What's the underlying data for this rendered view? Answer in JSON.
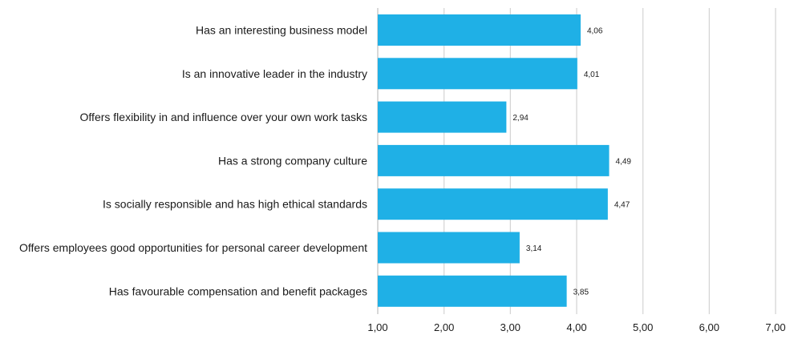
{
  "chart_data": {
    "type": "bar",
    "orientation": "horizontal",
    "title": "",
    "xlabel": "",
    "ylabel": "",
    "categories": [
      "Has an interesting business model",
      "Is an innovative leader in the industry",
      "Offers flexibility in and influence over your own work tasks",
      "Has a strong company culture",
      "Is socially responsible and has high ethical standards",
      "Offers employees good opportunities for personal career development",
      "Has favourable compensation and benefit packages"
    ],
    "values": [
      4.06,
      4.01,
      2.94,
      4.49,
      4.47,
      3.14,
      3.85
    ],
    "value_labels": [
      "4,06",
      "4,01",
      "2,94",
      "4,49",
      "4,47",
      "3,14",
      "3,85"
    ],
    "xlim": [
      1,
      7
    ],
    "x_ticks": [
      1,
      2,
      3,
      4,
      5,
      6,
      7
    ],
    "x_tick_labels": [
      "1,00",
      "2,00",
      "3,00",
      "4,00",
      "5,00",
      "6,00",
      "7,00"
    ],
    "grid": "vertical",
    "legend": "none",
    "colors": {
      "bar": "#1fb0e6",
      "grid": "#d3d3d3",
      "text": "#1a1a1a"
    }
  }
}
